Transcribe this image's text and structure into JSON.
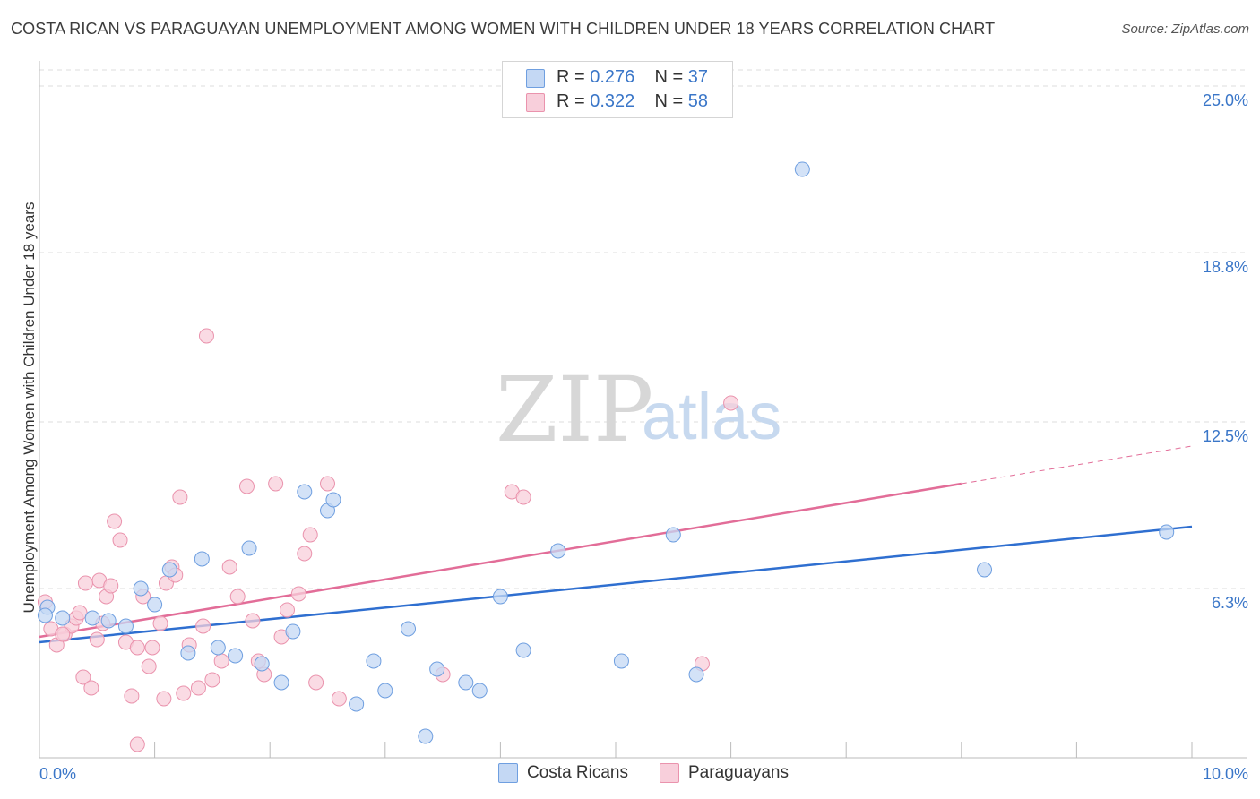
{
  "header": {
    "title": "COSTA RICAN VS PARAGUAYAN UNEMPLOYMENT AMONG WOMEN WITH CHILDREN UNDER 18 YEARS CORRELATION CHART",
    "source": "Source: ZipAtlas.com"
  },
  "legend": {
    "rows": [
      {
        "r_label": "R =",
        "r_value": "0.276",
        "n_label": "N =",
        "n_value": "37"
      },
      {
        "r_label": "R =",
        "r_value": "0.322",
        "n_label": "N =",
        "n_value": "58"
      }
    ]
  },
  "bottom_legend": {
    "costa": "Costa Ricans",
    "paraguay": "Paraguayans"
  },
  "watermark": {
    "zip": "ZIP",
    "atlas": "atlas"
  },
  "chart_data": {
    "type": "scatter",
    "title": "COSTA RICAN VS PARAGUAYAN UNEMPLOYMENT AMONG WOMEN WITH CHILDREN UNDER 18 YEARS CORRELATION CHART",
    "xlabel": "",
    "ylabel": "Unemployment Among Women with Children Under 18 years",
    "xlim": [
      0,
      10
    ],
    "ylim": [
      0,
      25.0
    ],
    "x_tick_labels": [
      "0.0%",
      "10.0%"
    ],
    "y_tick_labels": [
      "6.3%",
      "12.5%",
      "18.8%",
      "25.0%"
    ],
    "y_ticks": [
      6.3,
      12.5,
      18.8,
      25.0
    ],
    "grid": true,
    "legend_position": "top-center",
    "colors": {
      "costa": "#6f9fe0",
      "costa_fill": "#c4d8f4",
      "costa_line": "#2f6fd0",
      "paraguay": "#ea93ad",
      "paraguay_fill": "#f8cfdb",
      "paraguay_line": "#e26d98"
    },
    "series": [
      {
        "name": "Costa Ricans",
        "r": 0.276,
        "n": 37,
        "trend": {
          "x": [
            0.0,
            10.0
          ],
          "y": [
            4.3,
            8.6
          ]
        },
        "points": [
          [
            0.07,
            5.6
          ],
          [
            0.2,
            5.2
          ],
          [
            0.46,
            5.2
          ],
          [
            0.6,
            5.1
          ],
          [
            0.75,
            4.9
          ],
          [
            0.88,
            6.3
          ],
          [
            1.0,
            5.7
          ],
          [
            1.13,
            7.0
          ],
          [
            1.29,
            3.9
          ],
          [
            1.41,
            7.4
          ],
          [
            1.55,
            4.1
          ],
          [
            1.7,
            3.8
          ],
          [
            1.82,
            7.8
          ],
          [
            1.93,
            3.5
          ],
          [
            2.1,
            2.8
          ],
          [
            2.2,
            4.7
          ],
          [
            2.3,
            9.9
          ],
          [
            2.5,
            9.2
          ],
          [
            2.55,
            9.6
          ],
          [
            2.75,
            2.0
          ],
          [
            2.9,
            3.6
          ],
          [
            3.0,
            2.5
          ],
          [
            3.2,
            4.8
          ],
          [
            3.35,
            0.8
          ],
          [
            3.45,
            3.3
          ],
          [
            3.7,
            2.8
          ],
          [
            3.82,
            2.5
          ],
          [
            4.0,
            6.0
          ],
          [
            4.2,
            4.0
          ],
          [
            4.5,
            7.7
          ],
          [
            5.05,
            3.6
          ],
          [
            5.5,
            8.3
          ],
          [
            5.7,
            3.1
          ],
          [
            6.62,
            21.9
          ],
          [
            8.2,
            7.0
          ],
          [
            9.78,
            8.4
          ],
          [
            0.05,
            5.3
          ]
        ]
      },
      {
        "name": "Paraguayans",
        "r": 0.322,
        "n": 58,
        "trend": {
          "x": [
            0.0,
            8.0
          ],
          "y": [
            4.5,
            10.2
          ]
        },
        "trend_ext": {
          "x": [
            8.0,
            10.0
          ],
          "y": [
            10.2,
            11.6
          ]
        },
        "points": [
          [
            0.05,
            5.8
          ],
          [
            0.1,
            4.8
          ],
          [
            0.15,
            4.2
          ],
          [
            0.22,
            4.6
          ],
          [
            0.28,
            4.9
          ],
          [
            0.32,
            5.2
          ],
          [
            0.38,
            3.0
          ],
          [
            0.45,
            2.6
          ],
          [
            0.5,
            4.4
          ],
          [
            0.52,
            6.6
          ],
          [
            0.58,
            6.0
          ],
          [
            0.62,
            6.4
          ],
          [
            0.65,
            8.8
          ],
          [
            0.7,
            8.1
          ],
          [
            0.75,
            4.3
          ],
          [
            0.8,
            2.3
          ],
          [
            0.85,
            4.1
          ],
          [
            0.9,
            6.0
          ],
          [
            0.95,
            3.4
          ],
          [
            0.98,
            4.1
          ],
          [
            1.05,
            5.0
          ],
          [
            1.08,
            2.2
          ],
          [
            1.1,
            6.5
          ],
          [
            1.15,
            7.1
          ],
          [
            1.18,
            6.8
          ],
          [
            1.22,
            9.7
          ],
          [
            1.25,
            2.4
          ],
          [
            1.3,
            4.2
          ],
          [
            1.38,
            2.6
          ],
          [
            1.42,
            4.9
          ],
          [
            1.5,
            2.9
          ],
          [
            1.58,
            3.6
          ],
          [
            1.65,
            7.1
          ],
          [
            1.72,
            6.0
          ],
          [
            1.8,
            10.1
          ],
          [
            1.85,
            5.1
          ],
          [
            1.9,
            3.6
          ],
          [
            1.95,
            3.1
          ],
          [
            2.05,
            10.2
          ],
          [
            2.1,
            4.5
          ],
          [
            2.15,
            5.5
          ],
          [
            2.25,
            6.1
          ],
          [
            2.3,
            7.6
          ],
          [
            2.35,
            8.3
          ],
          [
            2.4,
            2.8
          ],
          [
            2.5,
            10.2
          ],
          [
            2.6,
            2.2
          ],
          [
            3.5,
            3.1
          ],
          [
            4.1,
            9.9
          ],
          [
            4.2,
            9.7
          ],
          [
            5.75,
            3.5
          ],
          [
            6.0,
            13.2
          ],
          [
            1.45,
            15.7
          ],
          [
            0.85,
            0.5
          ],
          [
            0.2,
            4.6
          ],
          [
            0.4,
            6.5
          ],
          [
            0.55,
            5.0
          ],
          [
            0.35,
            5.4
          ]
        ]
      }
    ]
  }
}
